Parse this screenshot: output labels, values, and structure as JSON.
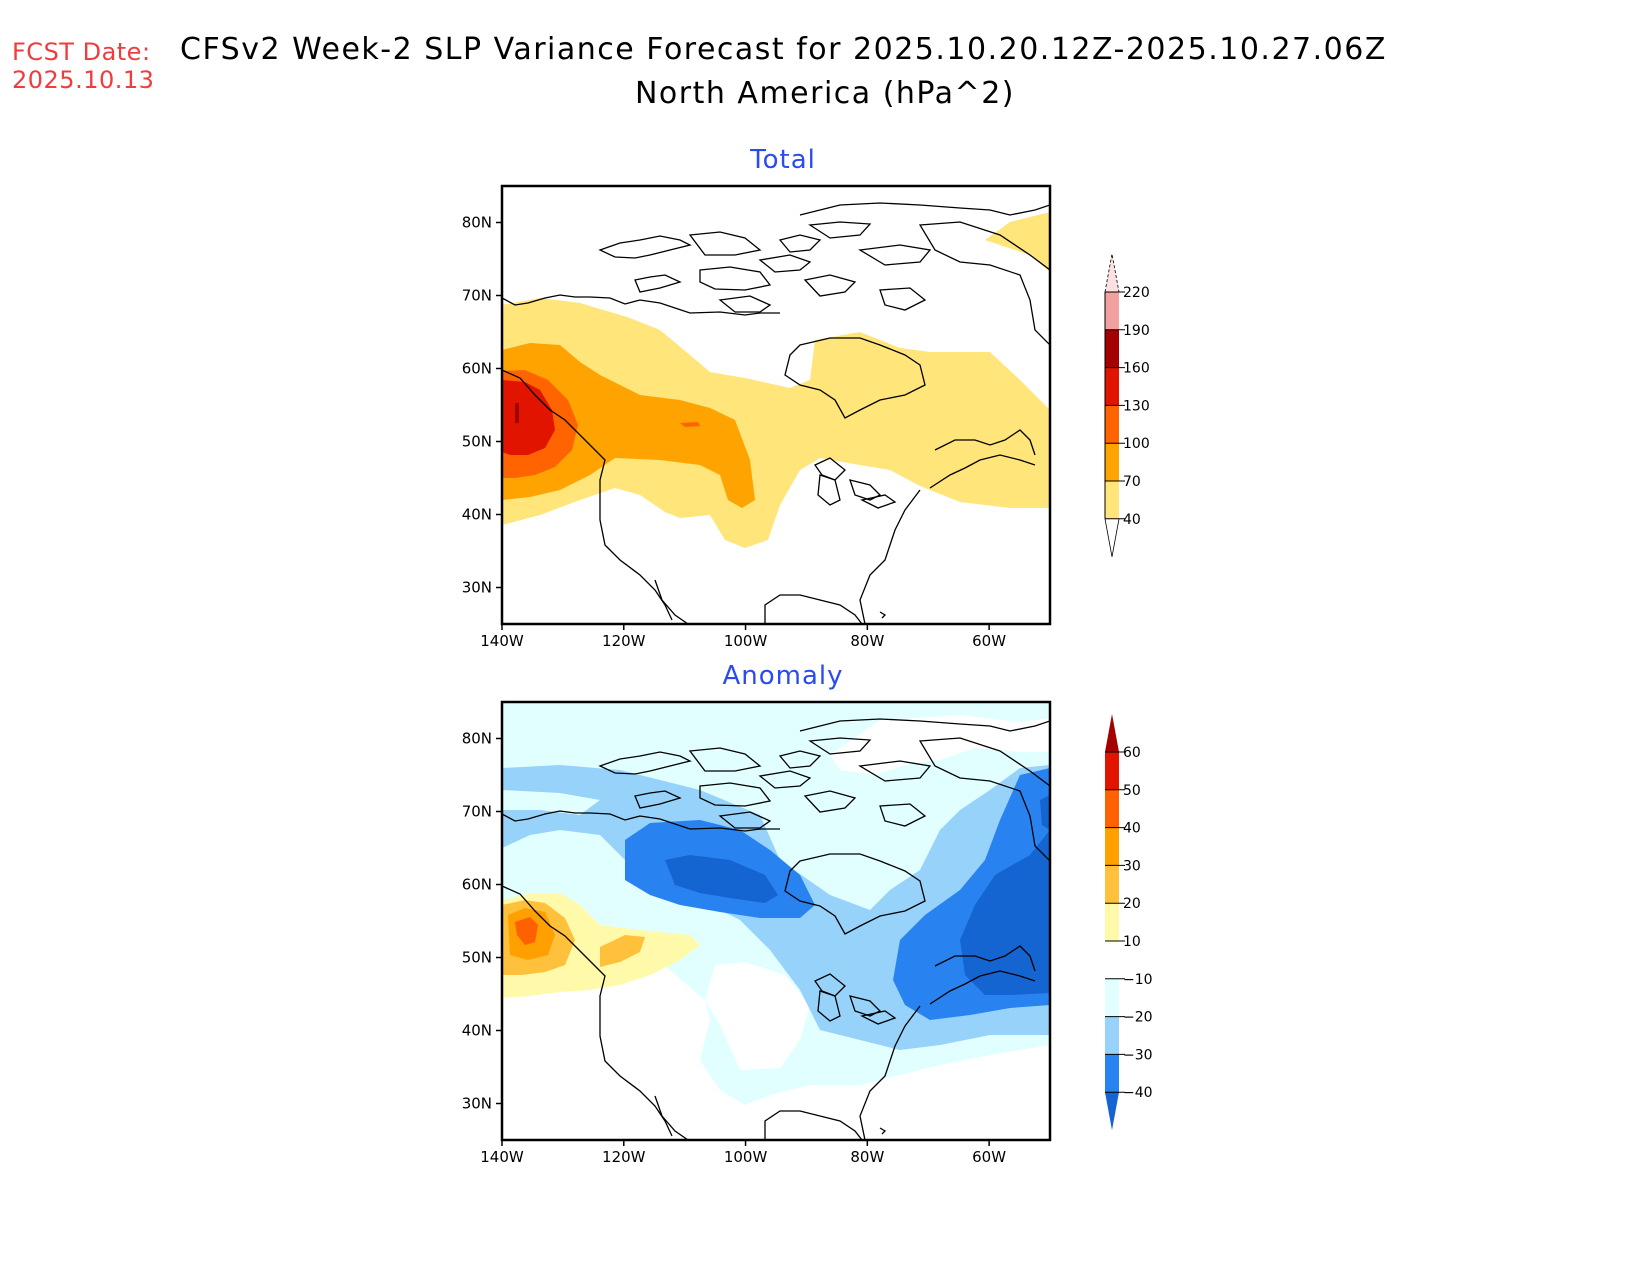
{
  "header": {
    "fcst_label": "FCST Date:",
    "fcst_date": "2025.10.13",
    "title": "CFSv2 Week-2 SLP Variance Forecast for 2025.10.20.12Z-2025.10.27.06Z",
    "subtitle": "North America (hPa^2)"
  },
  "chart_data": [
    {
      "type": "heatmap",
      "title": "Total",
      "units": "hPa^2",
      "region": "North America",
      "xlabel": "",
      "ylabel": "",
      "x_ticks": [
        "140W",
        "120W",
        "100W",
        "80W",
        "60W"
      ],
      "y_ticks": [
        "80N",
        "70N",
        "60N",
        "50N",
        "40N",
        "30N"
      ],
      "lon_range": [
        -140,
        -50
      ],
      "lat_range": [
        25,
        85
      ],
      "colorbar": {
        "levels": [
          40,
          70,
          100,
          130,
          160,
          190,
          220
        ],
        "colors": [
          "#ffe57a",
          "#ffa300",
          "#ff6400",
          "#e11400",
          "#a50000",
          "#f2a0a0",
          "#fde0e0"
        ]
      },
      "features": [
        {
          "name": "max over Gulf of Alaska / BC coast",
          "approx_lat": 53,
          "approx_lon": -137,
          "value_range": "130-160+"
        },
        {
          "name": "band across western Canada",
          "value_range": "70-100"
        },
        {
          "name": "eastern Canada / Quebec",
          "value_range": "40-70"
        },
        {
          "name": "east Greenland",
          "value_range": "40-70"
        }
      ]
    },
    {
      "type": "heatmap",
      "title": "Anomaly",
      "units": "hPa^2",
      "region": "North America",
      "x_ticks": [
        "140W",
        "120W",
        "100W",
        "80W",
        "60W"
      ],
      "y_ticks": [
        "80N",
        "70N",
        "60N",
        "50N",
        "40N",
        "30N"
      ],
      "lon_range": [
        -140,
        -50
      ],
      "lat_range": [
        25,
        85
      ],
      "colorbar": {
        "levels": [
          -40,
          -30,
          -20,
          -10,
          10,
          20,
          30,
          40,
          50,
          60
        ],
        "colors": [
          "#1464d2",
          "#2882f0",
          "#96d2fa",
          "#e1ffff",
          "#ffffff",
          "#fffaaa",
          "#ffc03c",
          "#ffa000",
          "#ff6000",
          "#e11400",
          "#a50000"
        ]
      },
      "features": [
        {
          "name": "positive anomaly BC coast",
          "approx_lat": 54,
          "approx_lon": -134,
          "value_range": "30-40"
        },
        {
          "name": "negative anomaly Northwest Territories",
          "approx_lat": 61,
          "approx_lon": -108,
          "value_range": "-40 to -30"
        },
        {
          "name": "negative anomaly Labrador / Quebec",
          "approx_lat": 55,
          "approx_lon": -58,
          "value_range": "below -40"
        },
        {
          "name": "weak negative central US",
          "value_range": "-20 to -10"
        }
      ]
    }
  ]
}
